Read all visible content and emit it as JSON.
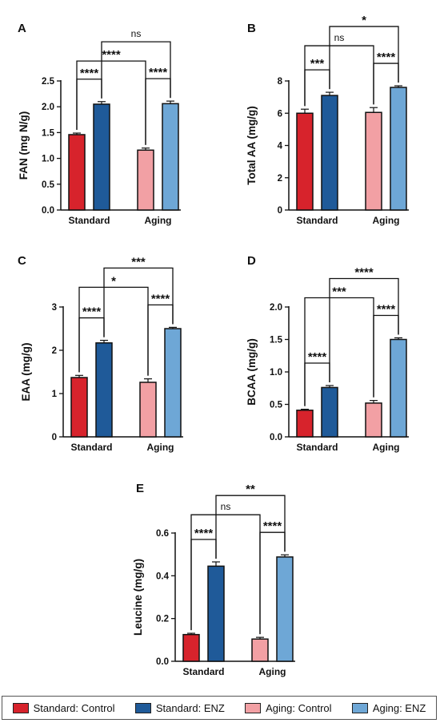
{
  "colors": {
    "standard_control": "#d7232c",
    "standard_enz": "#1f5a99",
    "aging_control": "#f2a0a4",
    "aging_enz": "#6ea7d6"
  },
  "legend": [
    {
      "label": "Standard: Control",
      "color": "#d7232c"
    },
    {
      "label": "Standard: ENZ",
      "color": "#1f5a99"
    },
    {
      "label": "Aging: Control",
      "color": "#f2a0a4"
    },
    {
      "label": "Aging: ENZ",
      "color": "#6ea7d6"
    }
  ],
  "chart_data": [
    {
      "type": "bar",
      "panel": "A",
      "ylabel": "FAN (mg N/g)",
      "categories": [
        "Standard",
        "Aging"
      ],
      "ylim": [
        0,
        2.5
      ],
      "yticks": [
        "0.0",
        "0.5",
        "1.0",
        "1.5",
        "2.0",
        "2.5"
      ],
      "series": [
        {
          "values": [
            1.46,
            2.05
          ],
          "errors": [
            0.03,
            0.05
          ]
        },
        {
          "values": [
            1.16,
            2.06
          ],
          "errors": [
            0.04,
            0.05
          ]
        }
      ],
      "annotations": [
        {
          "label": "****",
          "from": "Standard: Control",
          "to": "Standard: ENZ"
        },
        {
          "label": "****",
          "from": "Aging: Control",
          "to": "Aging: ENZ"
        },
        {
          "label": "****",
          "from": "Standard: Control",
          "to": "Aging: Control"
        },
        {
          "label": "ns",
          "from": "Standard: ENZ",
          "to": "Aging: ENZ"
        }
      ]
    },
    {
      "type": "bar",
      "panel": "B",
      "ylabel": "Total AA (mg/g)",
      "categories": [
        "Standard",
        "Aging"
      ],
      "ylim": [
        0,
        8
      ],
      "yticks": [
        "0",
        "2",
        "4",
        "6",
        "8"
      ],
      "series": [
        {
          "values": [
            6.0,
            7.1
          ],
          "errors": [
            0.25,
            0.2
          ]
        },
        {
          "values": [
            6.05,
            7.6
          ],
          "errors": [
            0.3,
            0.1
          ]
        }
      ],
      "annotations": [
        {
          "label": "***",
          "from": "Standard: Control",
          "to": "Standard: ENZ"
        },
        {
          "label": "****",
          "from": "Aging: Control",
          "to": "Aging: ENZ"
        },
        {
          "label": "ns",
          "from": "Standard: Control",
          "to": "Aging: Control"
        },
        {
          "label": "*",
          "from": "Standard: ENZ",
          "to": "Aging: ENZ"
        }
      ]
    },
    {
      "type": "bar",
      "panel": "C",
      "ylabel": "EAA (mg/g)",
      "categories": [
        "Standard",
        "Aging"
      ],
      "ylim": [
        0,
        3
      ],
      "yticks": [
        "0",
        "1",
        "2",
        "3"
      ],
      "series": [
        {
          "values": [
            1.37,
            2.17
          ],
          "errors": [
            0.05,
            0.06
          ]
        },
        {
          "values": [
            1.26,
            2.5
          ],
          "errors": [
            0.08,
            0.03
          ]
        }
      ],
      "annotations": [
        {
          "label": "****",
          "from": "Standard: Control",
          "to": "Standard: ENZ"
        },
        {
          "label": "****",
          "from": "Aging: Control",
          "to": "Aging: ENZ"
        },
        {
          "label": "*",
          "from": "Standard: Control",
          "to": "Aging: Control"
        },
        {
          "label": "***",
          "from": "Standard: ENZ",
          "to": "Aging: ENZ"
        }
      ]
    },
    {
      "type": "bar",
      "panel": "D",
      "ylabel": "BCAA (mg/g)",
      "categories": [
        "Standard",
        "Aging"
      ],
      "ylim": [
        0,
        2.0
      ],
      "yticks": [
        "0.0",
        "0.5",
        "1.0",
        "1.5",
        "2.0"
      ],
      "series": [
        {
          "values": [
            0.41,
            0.76
          ],
          "errors": [
            0.015,
            0.03
          ]
        },
        {
          "values": [
            0.52,
            1.5
          ],
          "errors": [
            0.04,
            0.025
          ]
        }
      ],
      "annotations": [
        {
          "label": "****",
          "from": "Standard: Control",
          "to": "Standard: ENZ"
        },
        {
          "label": "****",
          "from": "Aging: Control",
          "to": "Aging: ENZ"
        },
        {
          "label": "***",
          "from": "Standard: Control",
          "to": "Aging: Control"
        },
        {
          "label": "****",
          "from": "Standard: ENZ",
          "to": "Aging: ENZ"
        }
      ]
    },
    {
      "type": "bar",
      "panel": "E",
      "ylabel": "Leucine (mg/g)",
      "categories": [
        "Standard",
        "Aging"
      ],
      "ylim": [
        0,
        0.6
      ],
      "yticks": [
        "0.0",
        "0.2",
        "0.4",
        "0.6"
      ],
      "series": [
        {
          "values": [
            0.125,
            0.445
          ],
          "errors": [
            0.006,
            0.02
          ]
        },
        {
          "values": [
            0.104,
            0.488
          ],
          "errors": [
            0.008,
            0.01
          ]
        }
      ],
      "annotations": [
        {
          "label": "****",
          "from": "Standard: Control",
          "to": "Standard: ENZ"
        },
        {
          "label": "****",
          "from": "Aging: Control",
          "to": "Aging: ENZ"
        },
        {
          "label": "ns",
          "from": "Standard: Control",
          "to": "Aging: Control"
        },
        {
          "label": "**",
          "from": "Standard: ENZ",
          "to": "Aging: ENZ"
        }
      ]
    }
  ]
}
